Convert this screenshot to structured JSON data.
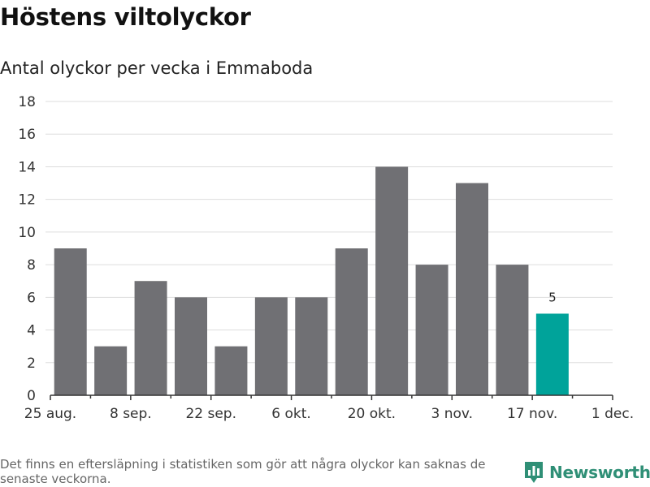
{
  "header": {
    "title": "Höstens viltolyckor",
    "subtitle": "Antal olyckor per vecka i Emmaboda"
  },
  "footer": {
    "note": "Det finns en eftersläpning i statistiken som gör att några olyckor kan saknas de senaste veckorna.",
    "brand": "Newsworthy"
  },
  "colors": {
    "bar": "#707074",
    "highlight": "#00a39a",
    "grid": "#dddddd",
    "axis": "#333333",
    "brand": "#2f8f76"
  },
  "chart_data": {
    "type": "bar",
    "title": "Höstens viltolyckor",
    "subtitle": "Antal olyckor per vecka i Emmaboda",
    "xlabel": "",
    "ylabel": "",
    "ylim": [
      0,
      18
    ],
    "yticks": [
      0,
      2,
      4,
      6,
      8,
      10,
      12,
      14,
      16,
      18
    ],
    "grid": true,
    "x_ticks": [
      {
        "label": "25 aug.",
        "slot": 0
      },
      {
        "label": "8 sep.",
        "slot": 2
      },
      {
        "label": "22 sep.",
        "slot": 4
      },
      {
        "label": "6 okt.",
        "slot": 6
      },
      {
        "label": "20 okt.",
        "slot": 8
      },
      {
        "label": "3 nov.",
        "slot": 10
      },
      {
        "label": "17 nov.",
        "slot": 12
      },
      {
        "label": "1 dec.",
        "slot": 14
      }
    ],
    "values": [
      9,
      3,
      7,
      6,
      3,
      6,
      6,
      9,
      14,
      8,
      13,
      8,
      5
    ],
    "highlight_index": 12,
    "data_labels": [
      {
        "index": 12,
        "text": "5"
      }
    ]
  }
}
